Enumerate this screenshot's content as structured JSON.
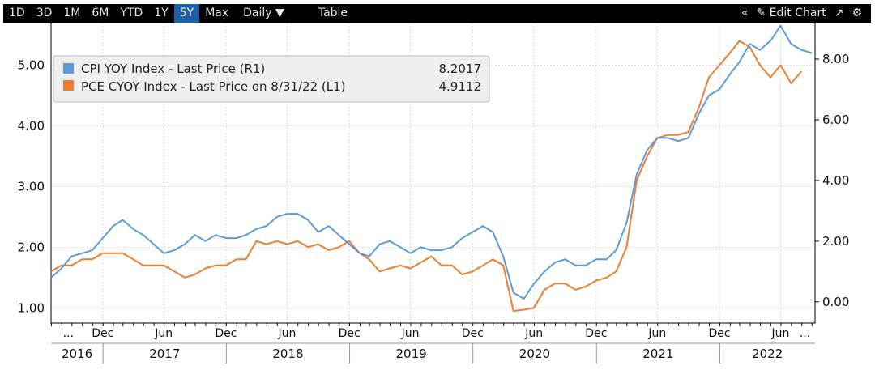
{
  "toolbar": {
    "ranges": [
      {
        "label": "1D",
        "active": false
      },
      {
        "label": "3D",
        "active": false
      },
      {
        "label": "1M",
        "active": false
      },
      {
        "label": "6M",
        "active": false
      },
      {
        "label": "YTD",
        "active": false
      },
      {
        "label": "1Y",
        "active": false
      },
      {
        "label": "5Y",
        "active": true
      },
      {
        "label": "Max",
        "active": false
      }
    ],
    "frequency_label": "Daily",
    "table_label": "Table",
    "edit_chart_label": "Edit Chart",
    "icons": [
      "collapse-icon",
      "pencil-icon",
      "expand-icon",
      "gear-icon"
    ],
    "active_color": "#1e5faa"
  },
  "chart_data": {
    "type": "line",
    "title": "",
    "xlabel": "",
    "grid": true,
    "legend_placement": "top-left",
    "x_range": [
      "2016-07-31",
      "2022-08-31"
    ],
    "left_axis": {
      "ylim": [
        0.75,
        5.7
      ],
      "ticks": [
        "1.00",
        "2.00",
        "3.00",
        "4.00",
        "5.00"
      ]
    },
    "right_axis": {
      "ylim": [
        -0.7,
        9.2
      ],
      "ticks": [
        "0.00",
        "2.00",
        "4.00",
        "6.00",
        "8.00"
      ]
    },
    "month_ticks": [
      "...",
      "Dec",
      "Jun",
      "Dec",
      "Jun",
      "Dec",
      "Jun",
      "Dec",
      "Jun",
      "Dec",
      "Jun",
      "Dec",
      "Jun",
      "..."
    ],
    "year_ticks": [
      "2016",
      "2017",
      "2018",
      "2019",
      "2020",
      "2021",
      "2022"
    ],
    "series": [
      {
        "name": "CPI YOY Index - Last Price (R1)",
        "legend_value": "8.2017",
        "axis": "right",
        "color": "#5b9bd5",
        "values": [
          [
            "2016-07-31",
            0.8
          ],
          [
            "2016-08-31",
            1.1
          ],
          [
            "2016-09-30",
            1.5
          ],
          [
            "2016-10-31",
            1.6
          ],
          [
            "2016-11-30",
            1.7
          ],
          [
            "2016-12-31",
            2.1
          ],
          [
            "2017-01-31",
            2.5
          ],
          [
            "2017-02-28",
            2.7
          ],
          [
            "2017-03-31",
            2.4
          ],
          [
            "2017-04-30",
            2.2
          ],
          [
            "2017-05-31",
            1.9
          ],
          [
            "2017-06-30",
            1.6
          ],
          [
            "2017-07-31",
            1.7
          ],
          [
            "2017-08-31",
            1.9
          ],
          [
            "2017-09-30",
            2.2
          ],
          [
            "2017-10-31",
            2.0
          ],
          [
            "2017-11-30",
            2.2
          ],
          [
            "2017-12-31",
            2.1
          ],
          [
            "2018-01-31",
            2.1
          ],
          [
            "2018-02-28",
            2.2
          ],
          [
            "2018-03-31",
            2.4
          ],
          [
            "2018-04-30",
            2.5
          ],
          [
            "2018-05-31",
            2.8
          ],
          [
            "2018-06-30",
            2.9
          ],
          [
            "2018-07-31",
            2.9
          ],
          [
            "2018-08-31",
            2.7
          ],
          [
            "2018-09-30",
            2.3
          ],
          [
            "2018-10-31",
            2.5
          ],
          [
            "2018-11-30",
            2.2
          ],
          [
            "2018-12-31",
            1.9
          ],
          [
            "2019-01-31",
            1.6
          ],
          [
            "2019-02-28",
            1.5
          ],
          [
            "2019-03-31",
            1.9
          ],
          [
            "2019-04-30",
            2.0
          ],
          [
            "2019-05-31",
            1.8
          ],
          [
            "2019-06-30",
            1.6
          ],
          [
            "2019-07-31",
            1.8
          ],
          [
            "2019-08-31",
            1.7
          ],
          [
            "2019-09-30",
            1.7
          ],
          [
            "2019-10-31",
            1.8
          ],
          [
            "2019-11-30",
            2.1
          ],
          [
            "2019-12-31",
            2.3
          ],
          [
            "2020-01-31",
            2.5
          ],
          [
            "2020-02-29",
            2.3
          ],
          [
            "2020-03-31",
            1.5
          ],
          [
            "2020-04-30",
            0.3
          ],
          [
            "2020-05-31",
            0.1
          ],
          [
            "2020-06-30",
            0.6
          ],
          [
            "2020-07-31",
            1.0
          ],
          [
            "2020-08-31",
            1.3
          ],
          [
            "2020-09-30",
            1.4
          ],
          [
            "2020-10-31",
            1.2
          ],
          [
            "2020-11-30",
            1.2
          ],
          [
            "2020-12-31",
            1.4
          ],
          [
            "2021-01-31",
            1.4
          ],
          [
            "2021-02-28",
            1.7
          ],
          [
            "2021-03-31",
            2.6
          ],
          [
            "2021-04-30",
            4.2
          ],
          [
            "2021-05-31",
            5.0
          ],
          [
            "2021-06-30",
            5.4
          ],
          [
            "2021-07-31",
            5.4
          ],
          [
            "2021-08-31",
            5.3
          ],
          [
            "2021-09-30",
            5.4
          ],
          [
            "2021-10-31",
            6.2
          ],
          [
            "2021-11-30",
            6.8
          ],
          [
            "2021-12-31",
            7.0
          ],
          [
            "2022-01-31",
            7.5
          ],
          [
            "2022-02-28",
            7.9
          ],
          [
            "2022-03-31",
            8.5
          ],
          [
            "2022-04-30",
            8.3
          ],
          [
            "2022-05-31",
            8.6
          ],
          [
            "2022-06-30",
            9.1
          ],
          [
            "2022-07-31",
            8.5
          ],
          [
            "2022-08-31",
            8.3
          ],
          [
            "2022-09-30",
            8.2
          ]
        ]
      },
      {
        "name": "PCE CYOY Index - Last Price on 8/31/22 (L1)",
        "legend_value": "4.9112",
        "axis": "left",
        "color": "#ed7d31",
        "values": [
          [
            "2016-07-31",
            1.6
          ],
          [
            "2016-08-31",
            1.7
          ],
          [
            "2016-09-30",
            1.7
          ],
          [
            "2016-10-31",
            1.8
          ],
          [
            "2016-11-30",
            1.8
          ],
          [
            "2016-12-31",
            1.9
          ],
          [
            "2017-01-31",
            1.9
          ],
          [
            "2017-02-28",
            1.9
          ],
          [
            "2017-03-31",
            1.8
          ],
          [
            "2017-04-30",
            1.7
          ],
          [
            "2017-05-31",
            1.7
          ],
          [
            "2017-06-30",
            1.7
          ],
          [
            "2017-07-31",
            1.6
          ],
          [
            "2017-08-31",
            1.5
          ],
          [
            "2017-09-30",
            1.55
          ],
          [
            "2017-10-31",
            1.65
          ],
          [
            "2017-11-30",
            1.7
          ],
          [
            "2017-12-31",
            1.7
          ],
          [
            "2018-01-31",
            1.8
          ],
          [
            "2018-02-28",
            1.8
          ],
          [
            "2018-03-31",
            2.1
          ],
          [
            "2018-04-30",
            2.05
          ],
          [
            "2018-05-31",
            2.1
          ],
          [
            "2018-06-30",
            2.05
          ],
          [
            "2018-07-31",
            2.1
          ],
          [
            "2018-08-31",
            2.0
          ],
          [
            "2018-09-30",
            2.05
          ],
          [
            "2018-10-31",
            1.95
          ],
          [
            "2018-11-30",
            2.0
          ],
          [
            "2018-12-31",
            2.1
          ],
          [
            "2019-01-31",
            1.9
          ],
          [
            "2019-02-28",
            1.8
          ],
          [
            "2019-03-31",
            1.6
          ],
          [
            "2019-04-30",
            1.65
          ],
          [
            "2019-05-31",
            1.7
          ],
          [
            "2019-06-30",
            1.65
          ],
          [
            "2019-07-31",
            1.75
          ],
          [
            "2019-08-31",
            1.85
          ],
          [
            "2019-09-30",
            1.7
          ],
          [
            "2019-10-31",
            1.7
          ],
          [
            "2019-11-30",
            1.55
          ],
          [
            "2019-12-31",
            1.6
          ],
          [
            "2020-01-31",
            1.7
          ],
          [
            "2020-02-29",
            1.8
          ],
          [
            "2020-03-31",
            1.7
          ],
          [
            "2020-04-30",
            0.95
          ],
          [
            "2020-05-31",
            0.97
          ],
          [
            "2020-06-30",
            1.0
          ],
          [
            "2020-07-31",
            1.3
          ],
          [
            "2020-08-31",
            1.4
          ],
          [
            "2020-09-30",
            1.4
          ],
          [
            "2020-10-31",
            1.3
          ],
          [
            "2020-11-30",
            1.35
          ],
          [
            "2020-12-31",
            1.45
          ],
          [
            "2021-01-31",
            1.5
          ],
          [
            "2021-02-28",
            1.6
          ],
          [
            "2021-03-31",
            2.0
          ],
          [
            "2021-04-30",
            3.1
          ],
          [
            "2021-05-31",
            3.5
          ],
          [
            "2021-06-30",
            3.8
          ],
          [
            "2021-07-31",
            3.85
          ],
          [
            "2021-08-31",
            3.85
          ],
          [
            "2021-09-30",
            3.9
          ],
          [
            "2021-10-31",
            4.3
          ],
          [
            "2021-11-30",
            4.8
          ],
          [
            "2021-12-31",
            5.0
          ],
          [
            "2022-01-31",
            5.2
          ],
          [
            "2022-02-28",
            5.4
          ],
          [
            "2022-03-31",
            5.3
          ],
          [
            "2022-04-30",
            5.0
          ],
          [
            "2022-05-31",
            4.8
          ],
          [
            "2022-06-30",
            5.0
          ],
          [
            "2022-07-31",
            4.7
          ],
          [
            "2022-08-31",
            4.9
          ]
        ]
      }
    ]
  }
}
